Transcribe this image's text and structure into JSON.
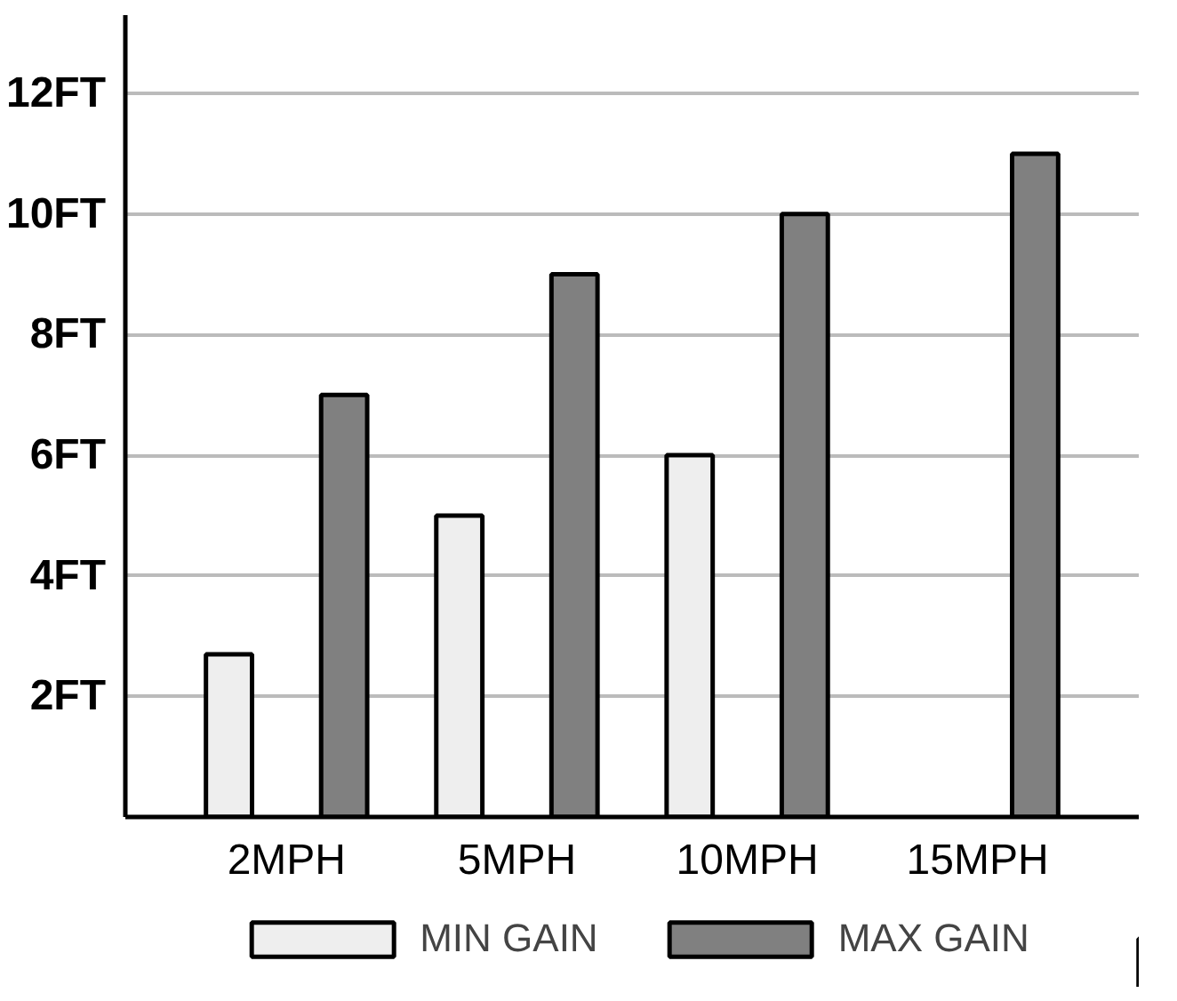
{
  "chart_data": {
    "type": "bar",
    "categories": [
      "2MPH",
      "5MPH",
      "10MPH",
      "15MPH"
    ],
    "series": [
      {
        "name": "MIN GAIN",
        "color": "#eeeeee",
        "values": [
          2.7,
          5,
          6,
          null
        ]
      },
      {
        "name": "MAX GAIN",
        "color": "#808080",
        "values": [
          7,
          9,
          10,
          11
        ]
      }
    ],
    "ylim": [
      0,
      13.3
    ],
    "yticks": [
      {
        "value": 2,
        "label": "2FT"
      },
      {
        "value": 4,
        "label": "4FT"
      },
      {
        "value": 6,
        "label": "6FT"
      },
      {
        "value": 8,
        "label": "8FT"
      },
      {
        "value": 10,
        "label": "10FT"
      },
      {
        "value": 12,
        "label": "12FT"
      }
    ],
    "grid": "y",
    "legend": "bottom"
  }
}
